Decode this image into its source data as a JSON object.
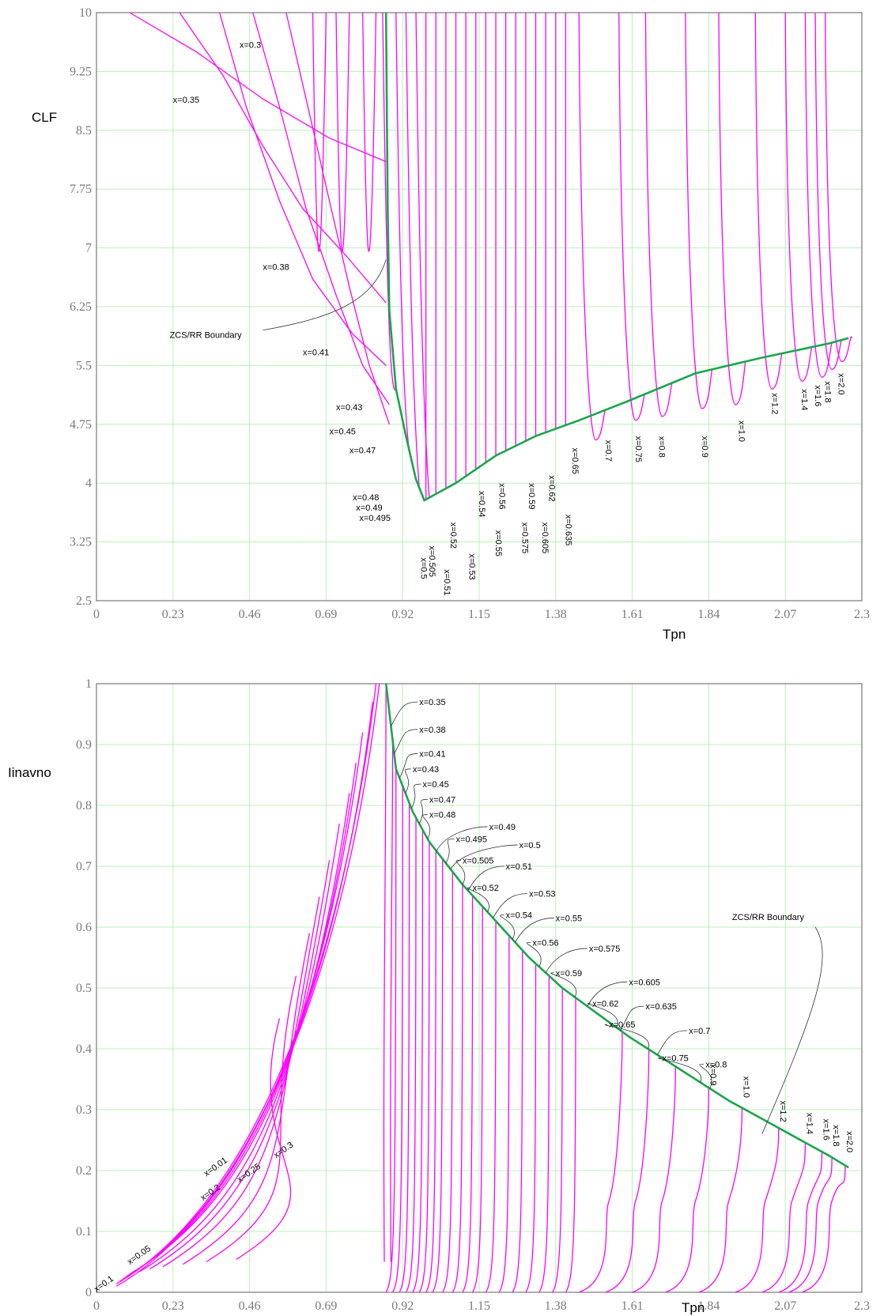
{
  "colors": {
    "series": "#ff00ff",
    "boundary": "#1aa64a",
    "grid": "#b9f0b9"
  },
  "chart_data": [
    {
      "type": "line",
      "xlabel": "Tpn",
      "ylabel": "CLF",
      "xlim": [
        0,
        2.3
      ],
      "ylim": [
        2.5,
        10
      ],
      "x_ticks": [
        "0",
        "0.23",
        "0.46",
        "0.69",
        "0.92",
        "1.15",
        "1.38",
        "1.61",
        "1.84",
        "2.07",
        "2.3"
      ],
      "y_ticks": [
        "2.5",
        "3.25",
        "4",
        "4.75",
        "5.5",
        "6.25",
        "7",
        "7.75",
        "8.5",
        "9.25",
        "10"
      ],
      "grid": true,
      "series": [
        {
          "name": "ZCS/RR Boundary",
          "x": [
            0.87,
            0.875,
            0.88,
            0.9,
            0.93,
            0.96,
            0.985,
            1.08,
            1.2,
            1.32,
            1.45,
            1.6,
            1.8,
            2.0,
            2.2,
            2.26
          ],
          "y": [
            10,
            7.5,
            6.2,
            5.2,
            4.6,
            4.05,
            3.78,
            4.0,
            4.35,
            4.6,
            4.8,
            5.05,
            5.4,
            5.6,
            5.78,
            5.85
          ]
        }
      ],
      "annotations": [
        "x=0.3",
        "x=0.35",
        "x=0.38",
        "x=0.41",
        "x=0.43",
        "x=0.45",
        "x=0.47",
        "x=0.48",
        "x=0.49",
        "x=0.495",
        "x=0.5",
        "x=0.505",
        "x=0.51",
        "x=0.52",
        "x=0.53",
        "x=0.54",
        "x=0.55",
        "x=0.56",
        "x=0.575",
        "x=0.59",
        "x=0.605",
        "x=0.62",
        "x=0.635",
        "x=0.65",
        "x=0.7",
        "x=0.75",
        "x=0.8",
        "x=0.9",
        "x=1.0",
        "x=1.2",
        "x=1.4",
        "x=1.6",
        "x=1.8",
        "x=2.0",
        "ZCS/RR Boundary"
      ]
    },
    {
      "type": "line",
      "xlabel": "Tpn",
      "ylabel": "Iinavno",
      "xlim": [
        0,
        2.3
      ],
      "ylim": [
        0,
        1
      ],
      "x_ticks": [
        "0",
        "0.23",
        "0.46",
        "0.69",
        "0.92",
        "1.15",
        "1.38",
        "1.61",
        "1.84",
        "2.07",
        "2.3"
      ],
      "y_ticks": [
        "0",
        "0.1",
        "0.2",
        "0.3",
        "0.4",
        "0.5",
        "0.6",
        "0.7",
        "0.8",
        "0.9",
        "1"
      ],
      "grid": true,
      "series": [
        {
          "name": "ZCS/RR Boundary",
          "x": [
            0.87,
            0.9,
            0.95,
            1.0,
            1.1,
            1.2,
            1.3,
            1.4,
            1.5,
            1.6,
            1.7,
            1.8,
            1.9,
            2.0,
            2.1,
            2.2,
            2.26
          ],
          "y": [
            1.0,
            0.86,
            0.79,
            0.74,
            0.67,
            0.61,
            0.55,
            0.5,
            0.46,
            0.42,
            0.385,
            0.35,
            0.315,
            0.285,
            0.255,
            0.225,
            0.205
          ]
        }
      ],
      "annotations": [
        "x=0.1",
        "x=0.05",
        "x=0.01",
        "x=0.2",
        "x=0.25",
        "x=0.3",
        "x=0.35",
        "x=0.38",
        "x=0.41",
        "x=0.43",
        "x=0.45",
        "x=0.47",
        "x=0.48",
        "x=0.49",
        "x=0.495",
        "x=0.5",
        "x=0.505",
        "x=0.51",
        "x=0.52",
        "x=0.53",
        "x=0.54",
        "x=0.55",
        "x=0.56",
        "x=0.575",
        "x=0.59",
        "x=0.605",
        "x=0.62",
        "x=0.635",
        "x=0.65",
        "x=0.7",
        "x=0.75",
        "x=0.8",
        "x=0.9",
        "x=1.0",
        "x=1.2",
        "x=1.4",
        "x=1.6",
        "x=1.8",
        "x=2.0",
        "ZCS/RR Boundary"
      ]
    }
  ]
}
